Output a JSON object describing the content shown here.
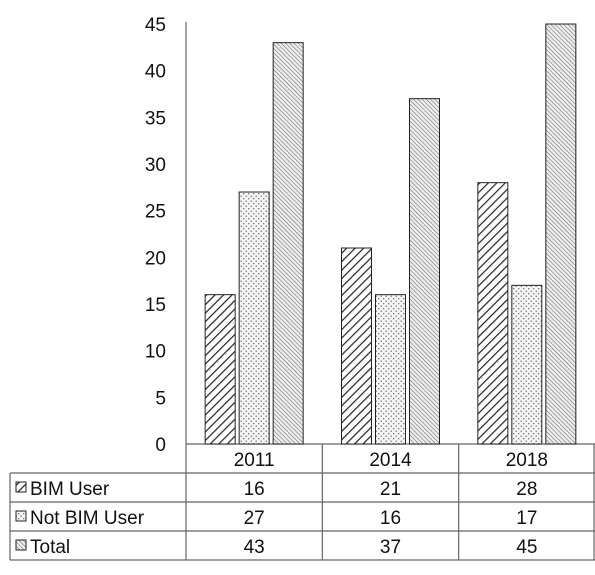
{
  "chart_data": {
    "type": "bar",
    "title": "",
    "xlabel": "",
    "ylabel": "",
    "categories": [
      "2011",
      "2014",
      "2018"
    ],
    "series": [
      {
        "name": "BIM User",
        "values": [
          16,
          21,
          28
        ],
        "pattern": "hatch"
      },
      {
        "name": "Not BIM User",
        "values": [
          27,
          16,
          17
        ],
        "pattern": "dots"
      },
      {
        "name": "Total",
        "values": [
          43,
          37,
          45
        ],
        "pattern": "fine-hatch"
      }
    ],
    "ylim": [
      0,
      45
    ],
    "yticks": [
      0,
      5,
      10,
      15,
      20,
      25,
      30,
      35,
      40,
      45
    ],
    "grid": false,
    "legend": "data-table",
    "colors": {
      "stroke": "#222222",
      "background": "#ffffff"
    }
  }
}
